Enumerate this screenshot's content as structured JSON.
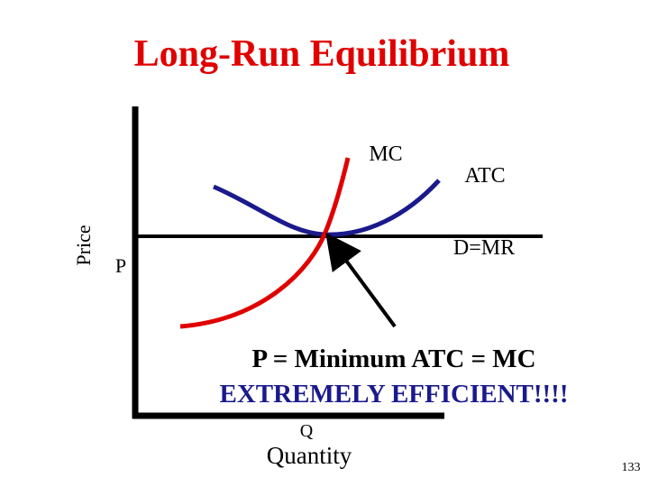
{
  "title": "Long-Run Equilibrium",
  "axes": {
    "y_label": "Price",
    "x_symbol": "Q",
    "x_label": "Quantity",
    "price_level": "P"
  },
  "curves": {
    "mc": "MC",
    "atc": "ATC",
    "demand": "D=MR"
  },
  "annotation": {
    "equation": "P = Minimum ATC = MC",
    "emphasis": "EXTREMELY EFFICIENT!!!!"
  },
  "page_number": "133"
}
